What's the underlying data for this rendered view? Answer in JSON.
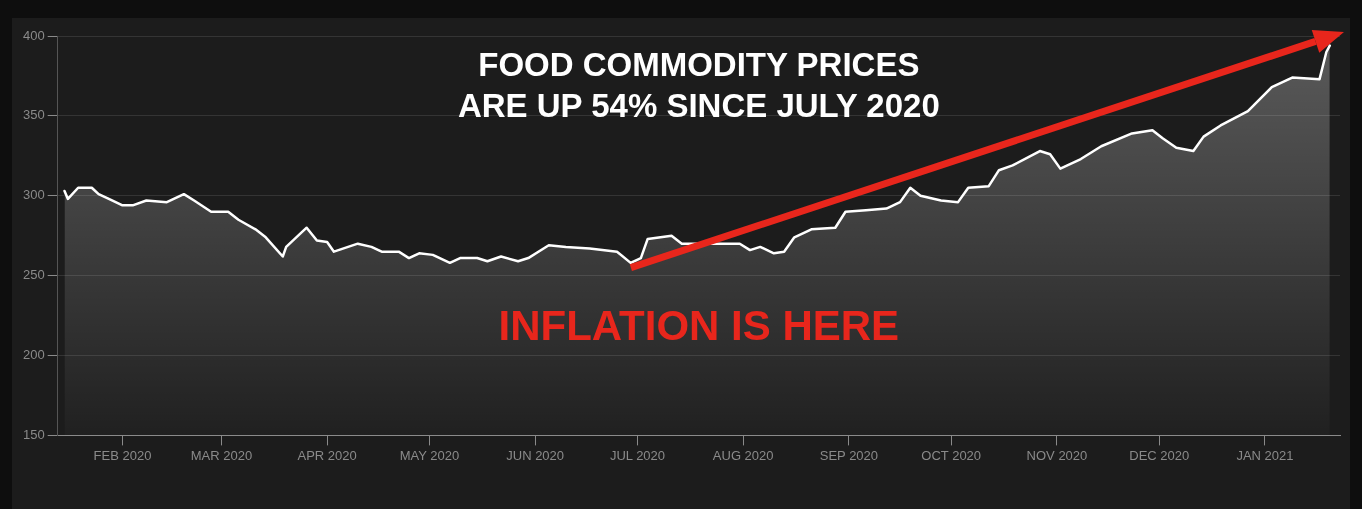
{
  "chart_data": {
    "type": "area",
    "x": [
      "2020-01-15",
      "2020-01-16",
      "2020-01-19",
      "2020-01-23",
      "2020-01-25",
      "2020-01-28",
      "2020-02-01",
      "2020-02-04",
      "2020-02-08",
      "2020-02-14",
      "2020-02-19",
      "2020-02-22",
      "2020-02-27",
      "2020-03-03",
      "2020-03-06",
      "2020-03-11",
      "2020-03-14",
      "2020-03-19",
      "2020-03-20",
      "2020-03-26",
      "2020-03-29",
      "2020-04-01",
      "2020-04-03",
      "2020-04-10",
      "2020-04-14",
      "2020-04-17",
      "2020-04-22",
      "2020-04-25",
      "2020-04-28",
      "2020-05-02",
      "2020-05-07",
      "2020-05-10",
      "2020-05-15",
      "2020-05-18",
      "2020-05-22",
      "2020-05-27",
      "2020-05-30",
      "2020-06-05",
      "2020-06-10",
      "2020-06-17",
      "2020-06-25",
      "2020-06-29",
      "2020-07-02",
      "2020-07-04",
      "2020-07-11",
      "2020-07-14",
      "2020-07-23",
      "2020-07-31",
      "2020-08-03",
      "2020-08-06",
      "2020-08-10",
      "2020-08-13",
      "2020-08-16",
      "2020-08-21",
      "2020-08-28",
      "2020-08-31",
      "2020-09-06",
      "2020-09-12",
      "2020-09-16",
      "2020-09-19",
      "2020-09-22",
      "2020-09-28",
      "2020-10-03",
      "2020-10-06",
      "2020-10-12",
      "2020-10-15",
      "2020-10-19",
      "2020-10-27",
      "2020-10-30",
      "2020-11-02",
      "2020-11-08",
      "2020-11-14",
      "2020-11-23",
      "2020-11-29",
      "2020-12-02",
      "2020-12-06",
      "2020-12-11",
      "2020-12-14",
      "2020-12-19",
      "2020-12-27",
      "2021-01-03",
      "2021-01-09",
      "2021-01-17",
      "2021-01-19",
      "2021-01-20"
    ],
    "series": [
      {
        "color": "#ffffff",
        "values": [
          303,
          298,
          305,
          305,
          301,
          298,
          294,
          294,
          297,
          296,
          301,
          297,
          290,
          290,
          285,
          279,
          274,
          262,
          268,
          280,
          272,
          271,
          265,
          270,
          268,
          265,
          265,
          261,
          264,
          263,
          258,
          261,
          261,
          259,
          262,
          259,
          261,
          269,
          268,
          267,
          265,
          258,
          261,
          273,
          275,
          270,
          270,
          270,
          266,
          268,
          264,
          265,
          274,
          279,
          280,
          290,
          291,
          292,
          296,
          305,
          300,
          297,
          296,
          305,
          306,
          316,
          319,
          328,
          326,
          317,
          323,
          331,
          339,
          341,
          336,
          330,
          328,
          337,
          344,
          353,
          368,
          374,
          373,
          390,
          394
        ]
      }
    ],
    "xlim": [
      "2020-01-13",
      "2021-01-23"
    ],
    "xticks": [
      {
        "value": "2020-02-01",
        "label": "FEB 2020"
      },
      {
        "value": "2020-03-01",
        "label": "MAR 2020"
      },
      {
        "value": "2020-04-01",
        "label": "APR 2020"
      },
      {
        "value": "2020-05-01",
        "label": "MAY 2020"
      },
      {
        "value": "2020-06-01",
        "label": "JUN 2020"
      },
      {
        "value": "2020-07-01",
        "label": "JUL 2020"
      },
      {
        "value": "2020-08-01",
        "label": "AUG 2020"
      },
      {
        "value": "2020-09-01",
        "label": "SEP 2020"
      },
      {
        "value": "2020-10-01",
        "label": "OCT 2020"
      },
      {
        "value": "2020-11-01",
        "label": "NOV 2020"
      },
      {
        "value": "2020-12-01",
        "label": "DEC 2020"
      },
      {
        "value": "2021-01-01",
        "label": "JAN 2021"
      }
    ],
    "ylim": [
      150,
      400
    ],
    "yticks": [
      150,
      200,
      250,
      300,
      350,
      400
    ],
    "grid": "y",
    "legend": false,
    "marker": "none",
    "line_style": "solid",
    "annotations": [
      "FOOD COMMODITY PRICES\nARE UP 54% SINCE JULY 2020",
      "INFLATION IS HERE"
    ]
  }
}
